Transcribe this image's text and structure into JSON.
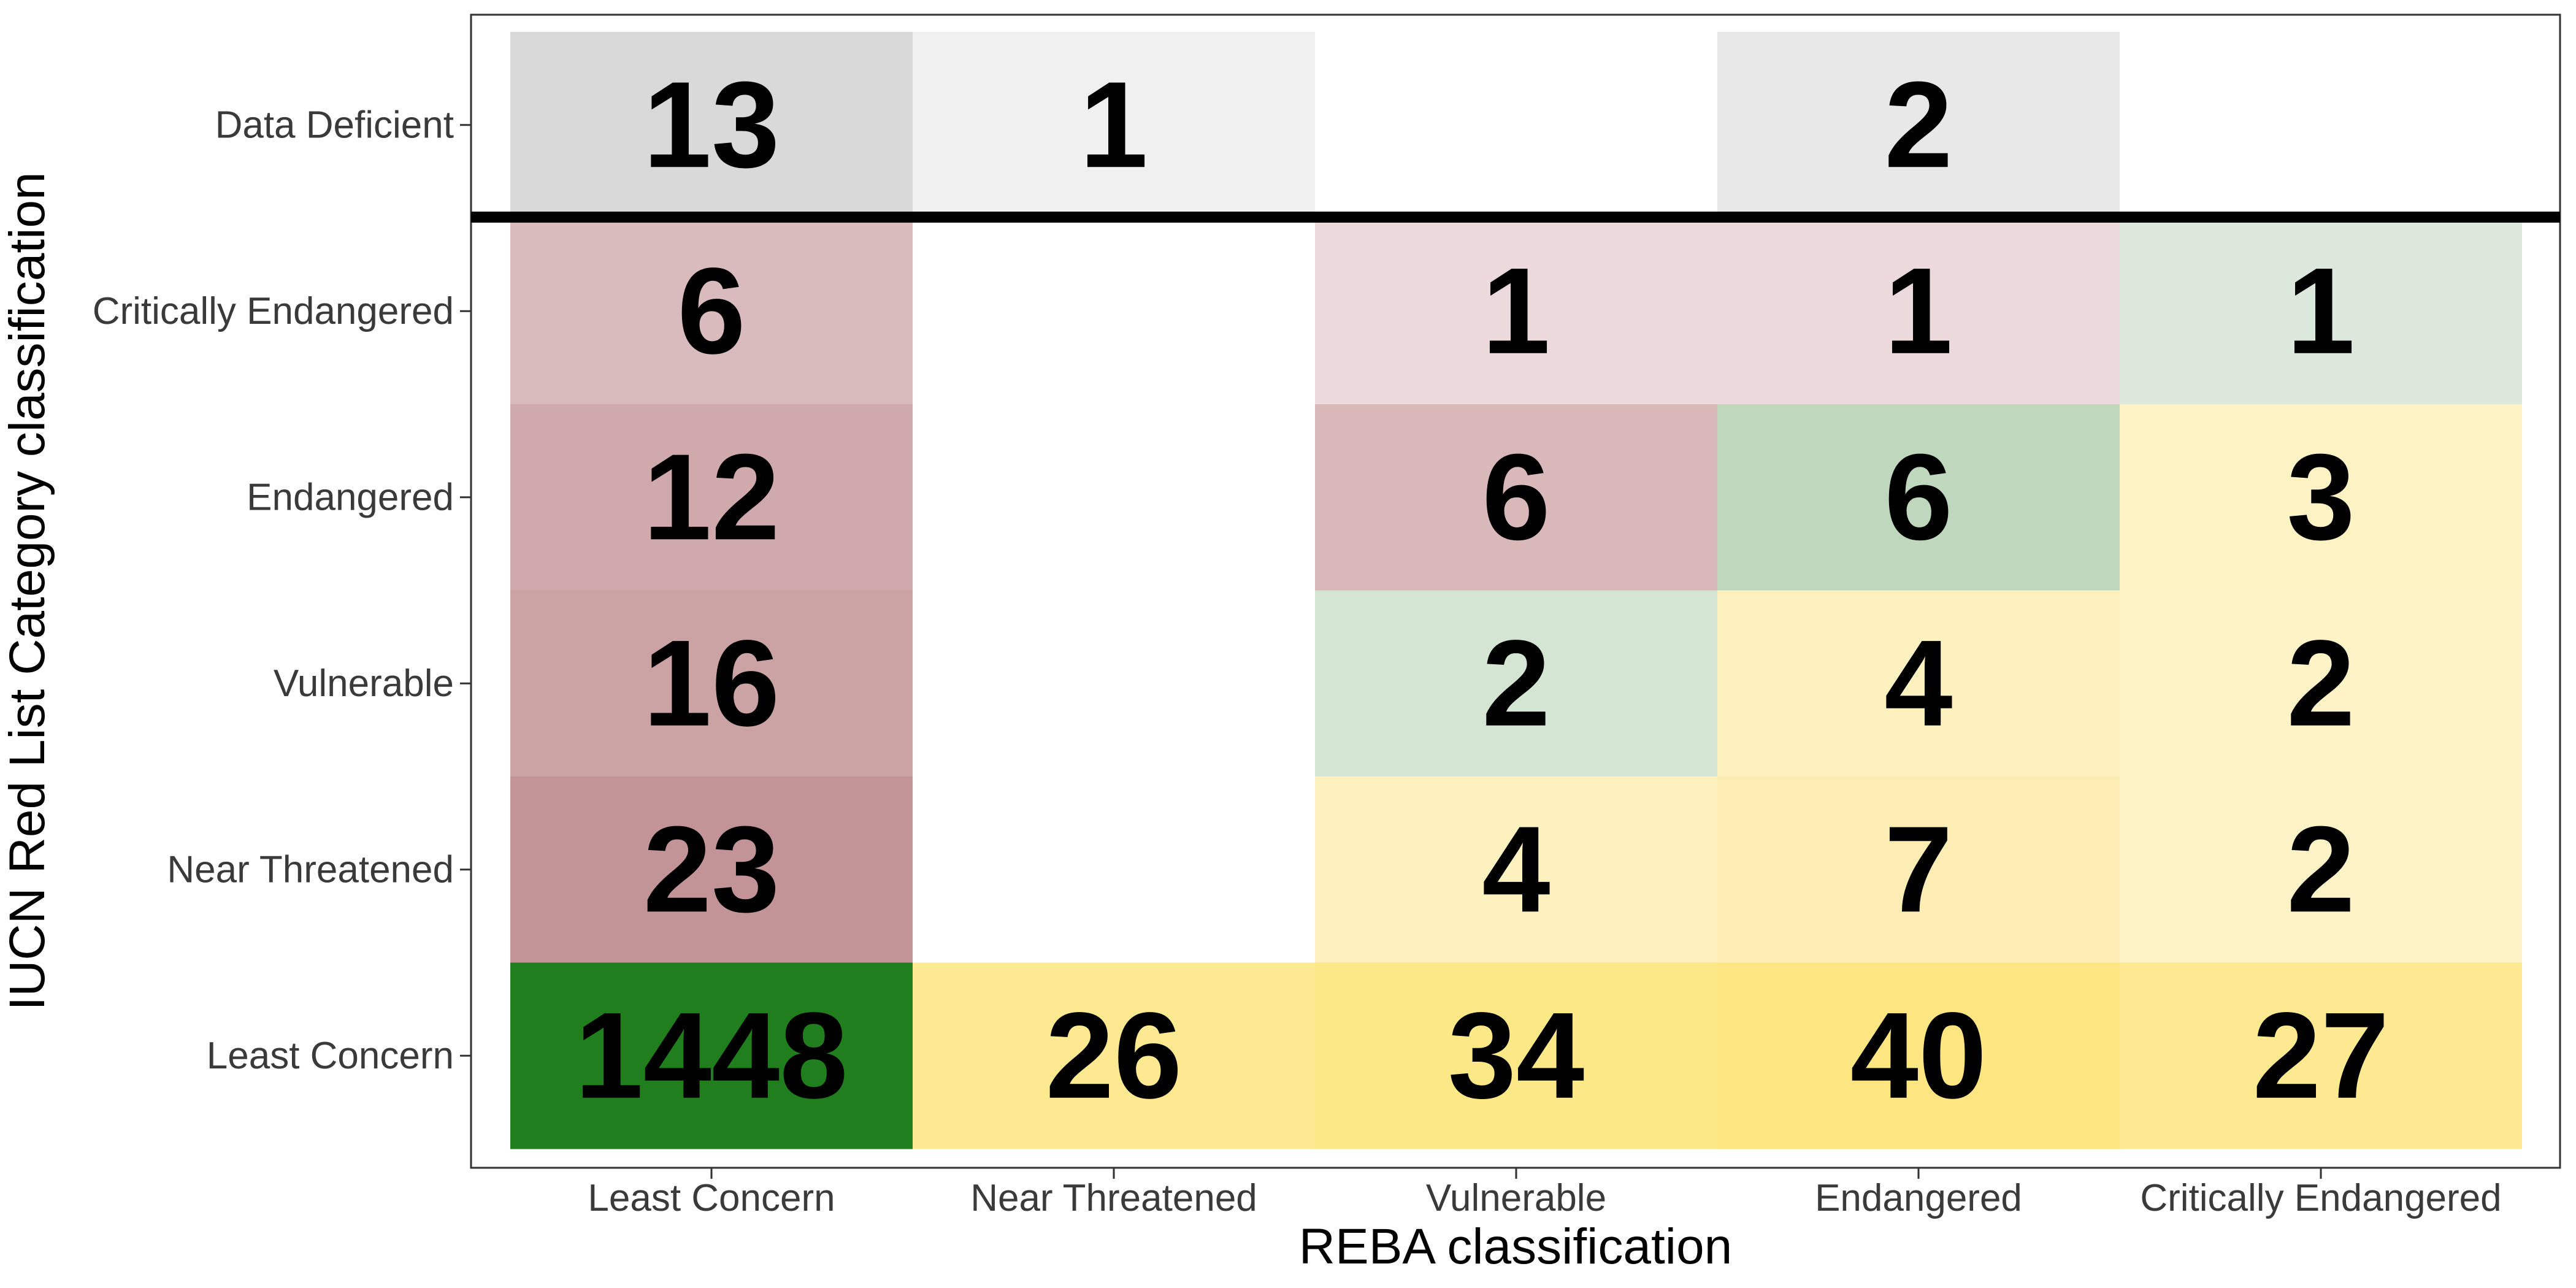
{
  "chart_data": {
    "type": "heatmap",
    "xlabel": "REBA classification",
    "ylabel": "IUCN Red List Category classification",
    "x_categories": [
      "Least Concern",
      "Near Threatened",
      "Vulnerable",
      "Endangered",
      "Critically Endangered"
    ],
    "y_categories": [
      "Data Deficient",
      "Critically Endangered",
      "Endangered",
      "Vulnerable",
      "Near Threatened",
      "Least Concern"
    ],
    "separator_after_row": "Data Deficient",
    "grid": false,
    "cells": [
      {
        "x": "Least Concern",
        "y": "Data Deficient",
        "value": 13,
        "color": "#d9d9d9"
      },
      {
        "x": "Near Threatened",
        "y": "Data Deficient",
        "value": 1,
        "color": "#f0f0f0"
      },
      {
        "x": "Endangered",
        "y": "Data Deficient",
        "value": 2,
        "color": "#e8e8e8"
      },
      {
        "x": "Least Concern",
        "y": "Critically Endangered",
        "value": 6,
        "color": "#d9bbbe"
      },
      {
        "x": "Vulnerable",
        "y": "Critically Endangered",
        "value": 1,
        "color": "#ebd9db"
      },
      {
        "x": "Endangered",
        "y": "Critically Endangered",
        "value": 1,
        "color": "#ebd9db"
      },
      {
        "x": "Critically Endangered",
        "y": "Critically Endangered",
        "value": 1,
        "color": "#dde8dc"
      },
      {
        "x": "Least Concern",
        "y": "Endangered",
        "value": 12,
        "color": "#d0a9ad"
      },
      {
        "x": "Vulnerable",
        "y": "Endangered",
        "value": 6,
        "color": "#d9b8ba"
      },
      {
        "x": "Endangered",
        "y": "Endangered",
        "value": 6,
        "color": "#bfd8bd"
      },
      {
        "x": "Critically Endangered",
        "y": "Endangered",
        "value": 3,
        "color": "#fdf2c4"
      },
      {
        "x": "Least Concern",
        "y": "Vulnerable",
        "value": 16,
        "color": "#cba3a5"
      },
      {
        "x": "Vulnerable",
        "y": "Vulnerable",
        "value": 2,
        "color": "#d4e5d3"
      },
      {
        "x": "Endangered",
        "y": "Vulnerable",
        "value": 4,
        "color": "#fdf1c0"
      },
      {
        "x": "Critically Endangered",
        "y": "Vulnerable",
        "value": 2,
        "color": "#fdf3c7"
      },
      {
        "x": "Least Concern",
        "y": "Near Threatened",
        "value": 23,
        "color": "#c29497"
      },
      {
        "x": "Vulnerable",
        "y": "Near Threatened",
        "value": 4,
        "color": "#fdf1c0"
      },
      {
        "x": "Endangered",
        "y": "Near Threatened",
        "value": 7,
        "color": "#fcedb4"
      },
      {
        "x": "Critically Endangered",
        "y": "Near Threatened",
        "value": 2,
        "color": "#fdf3c7"
      },
      {
        "x": "Least Concern",
        "y": "Least Concern",
        "value": 1448,
        "color": "#217e1d"
      },
      {
        "x": "Near Threatened",
        "y": "Least Concern",
        "value": 26,
        "color": "#fde98f"
      },
      {
        "x": "Vulnerable",
        "y": "Least Concern",
        "value": 34,
        "color": "#fde888"
      },
      {
        "x": "Endangered",
        "y": "Least Concern",
        "value": 40,
        "color": "#fde682"
      },
      {
        "x": "Critically Endangered",
        "y": "Least Concern",
        "value": 27,
        "color": "#fde98f"
      }
    ]
  }
}
